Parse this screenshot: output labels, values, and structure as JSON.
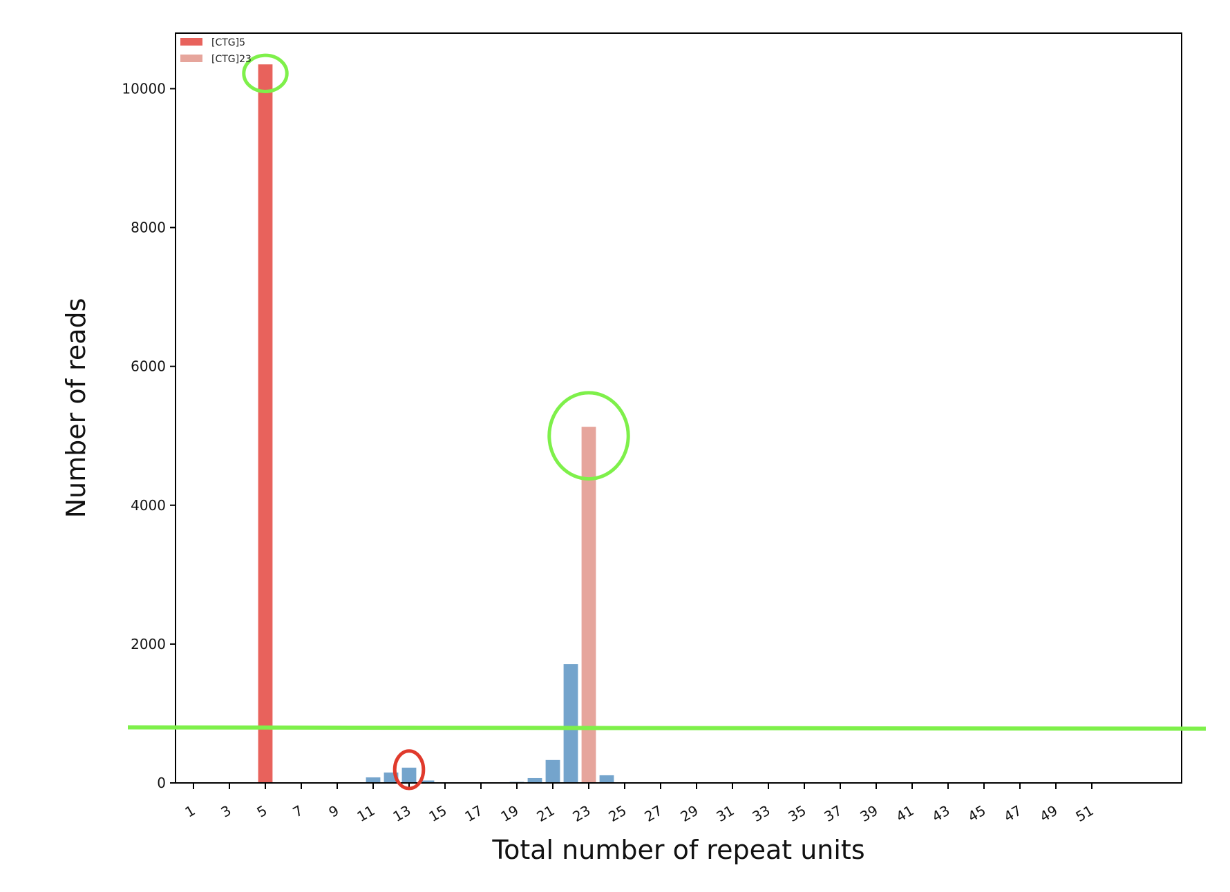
{
  "chart_data": {
    "type": "bar",
    "xlabel": "Total number of repeat units",
    "ylabel": "Number of reads",
    "xlim": [
      0,
      56
    ],
    "ylim": [
      0,
      10800
    ],
    "x_ticks": [
      1,
      3,
      5,
      7,
      9,
      11,
      13,
      15,
      17,
      19,
      21,
      23,
      25,
      27,
      29,
      31,
      33,
      35,
      37,
      39,
      41,
      43,
      45,
      47,
      49,
      51
    ],
    "y_ticks": [
      0,
      2000,
      4000,
      6000,
      8000,
      10000
    ],
    "grid": false,
    "legend_position": "top-left",
    "legend": [
      {
        "label": "[CTG]5",
        "color": "#e8625c"
      },
      {
        "label": "[CTG]23",
        "color": "#e6a59c"
      }
    ],
    "series": [
      {
        "name": "[CTG]5",
        "color": "#e8625c",
        "x": [
          5
        ],
        "values": [
          10350
        ]
      },
      {
        "name": "[CTG]23",
        "color": "#e6a59c",
        "x": [
          23
        ],
        "values": [
          5130
        ]
      },
      {
        "color": "#74a4cc",
        "x": [
          11,
          12,
          13,
          14,
          19,
          20,
          21,
          22,
          24
        ],
        "values": [
          80,
          150,
          220,
          35,
          15,
          70,
          330,
          1710,
          110
        ]
      }
    ],
    "annotations": [
      {
        "type": "ellipse",
        "color": "#7ef04a",
        "center": [
          5,
          10220
        ],
        "radius_x": 1.2,
        "radius_y": 260
      },
      {
        "type": "ellipse",
        "color": "#7ef04a",
        "center": [
          23,
          5000
        ],
        "radius_x": 2.2,
        "radius_y": 620
      },
      {
        "type": "ellipse",
        "color": "#e03a2c",
        "center": [
          13,
          190
        ],
        "radius_x": 0.8,
        "radius_y": 270
      },
      {
        "type": "hline",
        "color": "#7ef04a",
        "y": 800
      }
    ]
  }
}
